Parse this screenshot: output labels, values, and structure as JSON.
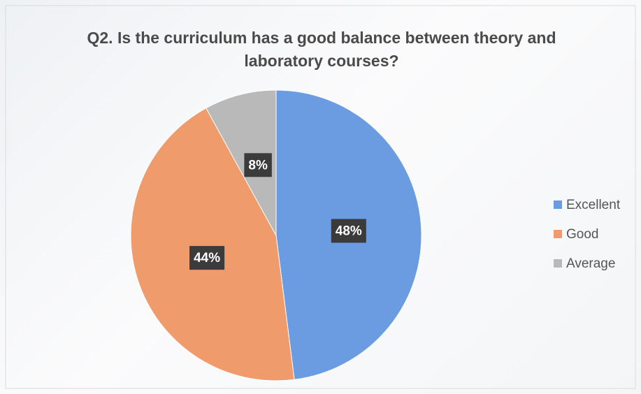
{
  "chart_data": {
    "type": "pie",
    "title": "Q2. Is the curriculum has a good balance between theory and laboratory courses?",
    "categories": [
      "Excellent",
      "Good",
      "Average"
    ],
    "values": [
      48,
      44,
      8
    ],
    "value_labels": [
      "48%",
      "44%",
      "8%"
    ],
    "colors": [
      "#6b9be0",
      "#f09b6b",
      "#b9b9b9"
    ],
    "legend": "right"
  }
}
